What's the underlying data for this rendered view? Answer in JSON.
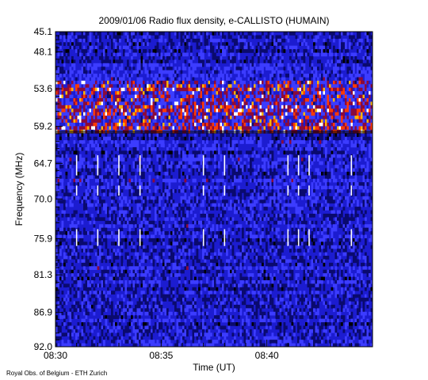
{
  "chart_data": {
    "type": "heatmap",
    "title": "2009/01/06  Radio flux density, e-CALLISTO (HUMAIN)",
    "xlabel": "Time (UT)",
    "ylabel": "Frequency (MHz)",
    "x_range": [
      "08:30",
      "08:45"
    ],
    "x_ticks": [
      {
        "label": "08:30",
        "value": "08:30"
      },
      {
        "label": "08:35",
        "value": "08:35"
      },
      {
        "label": "08:40",
        "value": "08:40"
      }
    ],
    "y_range_mhz": [
      45.1,
      92.0
    ],
    "y_inverted": true,
    "y_ticks": [
      {
        "label": "45.1",
        "value": 45.1
      },
      {
        "label": "48.1",
        "value": 48.1
      },
      {
        "label": "53.6",
        "value": 53.6
      },
      {
        "label": "59.2",
        "value": 59.2
      },
      {
        "label": "64.7",
        "value": 64.7
      },
      {
        "label": "70.0",
        "value": 70.0
      },
      {
        "label": "75.9",
        "value": 75.9
      },
      {
        "label": "81.3",
        "value": 81.3
      },
      {
        "label": "86.9",
        "value": 86.9
      },
      {
        "label": "92.0",
        "value": 92.0
      }
    ],
    "colormap": [
      "#000000",
      "#0a0a6e",
      "#1c1cd0",
      "#3c3cff",
      "#8a0a3c",
      "#ff3a00",
      "#ffb400",
      "#ffffff"
    ],
    "bright_band_mhz": [
      52.5,
      60.0
    ],
    "vertical_burst_times": [
      "08:31",
      "08:32",
      "08:33",
      "08:34",
      "08:37",
      "08:38",
      "08:41",
      "08:41.5",
      "08:42",
      "08:44"
    ],
    "credit": "Royal Obs. of Belgium - ETH Zurich",
    "grid": false
  },
  "colors": {
    "background": "#1c1cd0",
    "axis": "#000000"
  }
}
